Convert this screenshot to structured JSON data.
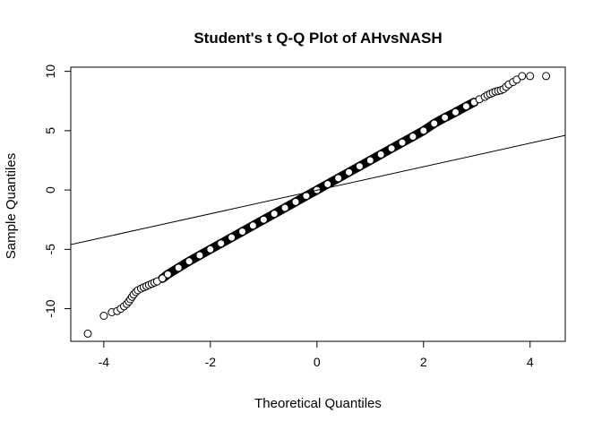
{
  "chart_data": {
    "type": "scatter",
    "title": "Student's t Q-Q Plot of AHvsNASH",
    "xlabel": "Theoretical Quantiles",
    "ylabel": "Sample Quantiles",
    "xlim": [
      -4.62,
      4.66
    ],
    "ylim": [
      -12.75,
      10.35
    ],
    "x_ticks": [
      -4,
      -2,
      0,
      2,
      4
    ],
    "x_tick_labels": [
      "-4",
      "-2",
      "0",
      "2",
      "4"
    ],
    "y_ticks": [
      -10,
      -5,
      0,
      5,
      10
    ],
    "y_tick_labels": [
      "-10",
      "-5",
      "0",
      "5",
      "10"
    ],
    "grid": false,
    "legend": "none",
    "point_style": "open-circle",
    "point_color": "#000000",
    "series": [
      {
        "points": [
          [
            -4.3,
            -12.1
          ],
          [
            -4.0,
            -10.6
          ],
          [
            -3.85,
            -10.3
          ],
          [
            -3.75,
            -10.2
          ],
          [
            -3.68,
            -10.0
          ],
          [
            -3.62,
            -9.8
          ],
          [
            -3.57,
            -9.6
          ],
          [
            -3.53,
            -9.4
          ],
          [
            -3.5,
            -9.2
          ],
          [
            -3.47,
            -9.0
          ],
          [
            -3.44,
            -8.8
          ],
          [
            -3.4,
            -8.6
          ],
          [
            -3.36,
            -8.45
          ],
          [
            -3.3,
            -8.3
          ],
          [
            -3.25,
            -8.2
          ],
          [
            -3.2,
            -8.1
          ],
          [
            -3.15,
            -8.0
          ],
          [
            -3.1,
            -7.9
          ],
          [
            -3.05,
            -7.8
          ],
          [
            -3.0,
            -7.7
          ],
          [
            -2.9,
            -7.45
          ],
          [
            -2.8,
            -7.1
          ],
          [
            -2.6,
            -6.55
          ],
          [
            -2.4,
            -6.0
          ],
          [
            -2.2,
            -5.5
          ],
          [
            -2.0,
            -5.0
          ],
          [
            -1.8,
            -4.5
          ],
          [
            -1.6,
            -4.0
          ],
          [
            -1.4,
            -3.5
          ],
          [
            -1.2,
            -3.0
          ],
          [
            -1.0,
            -2.5
          ],
          [
            -0.8,
            -2.0
          ],
          [
            -0.6,
            -1.5
          ],
          [
            -0.4,
            -1.0
          ],
          [
            -0.2,
            -0.5
          ],
          [
            0.0,
            0.0
          ],
          [
            0.2,
            0.5
          ],
          [
            0.4,
            1.0
          ],
          [
            0.6,
            1.5
          ],
          [
            0.8,
            2.0
          ],
          [
            1.0,
            2.5
          ],
          [
            1.2,
            3.0
          ],
          [
            1.4,
            3.5
          ],
          [
            1.6,
            4.0
          ],
          [
            1.8,
            4.5
          ],
          [
            2.0,
            5.0
          ],
          [
            2.2,
            5.6
          ],
          [
            2.4,
            6.1
          ],
          [
            2.6,
            6.55
          ],
          [
            2.8,
            7.05
          ],
          [
            2.95,
            7.4
          ],
          [
            3.05,
            7.65
          ],
          [
            3.15,
            7.85
          ],
          [
            3.2,
            8.0
          ],
          [
            3.25,
            8.1
          ],
          [
            3.3,
            8.2
          ],
          [
            3.35,
            8.3
          ],
          [
            3.4,
            8.35
          ],
          [
            3.45,
            8.4
          ],
          [
            3.5,
            8.5
          ],
          [
            3.55,
            8.7
          ],
          [
            3.6,
            8.9
          ],
          [
            3.68,
            9.1
          ],
          [
            3.75,
            9.3
          ],
          [
            3.85,
            9.6
          ],
          [
            4.0,
            9.6
          ],
          [
            4.3,
            9.6
          ]
        ]
      }
    ],
    "reference_line": {
      "intercept": 0.07,
      "slope": 0.995
    }
  }
}
